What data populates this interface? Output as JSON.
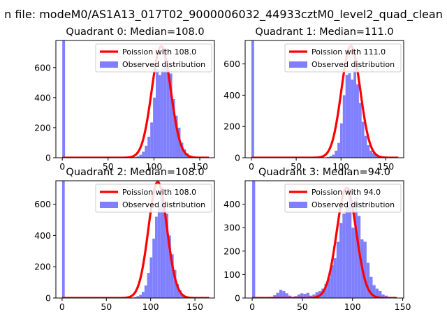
{
  "suptitle": "n file: modeM0/AS1A13_017T02_9000006032_44933cztM0_level2_quad_clean",
  "chart_data": [
    {
      "type": "bar",
      "title": "Quadrant 0: Median=108.0",
      "xlim": [
        -7,
        166
      ],
      "ylim": [
        0,
        780
      ],
      "xticks": [
        0,
        50,
        100,
        150
      ],
      "yticks": [
        0,
        200,
        400,
        600
      ],
      "legend": [
        "Poission with 108.0",
        "Observed distribution"
      ],
      "legend_position": "upper right",
      "poisson_mean": 108,
      "poisson_peak": 742,
      "poisson_x_max": 160,
      "hist": {
        "bin_edges": [
          0,
          3,
          6,
          9,
          12,
          15,
          18,
          21,
          24,
          27,
          30,
          33,
          36,
          39,
          42,
          45,
          48,
          51,
          54,
          57,
          60,
          63,
          66,
          69,
          72,
          75,
          78,
          81,
          84,
          87,
          90,
          93,
          96,
          99,
          102,
          105,
          108,
          111,
          114,
          117,
          120,
          123,
          126,
          129,
          132,
          135,
          138,
          141,
          144,
          147,
          150,
          153,
          156,
          159
        ],
        "counts": [
          780,
          0,
          0,
          0,
          0,
          0,
          0,
          0,
          0,
          0,
          0,
          0,
          0,
          0,
          0,
          0,
          0,
          0,
          0,
          0,
          0,
          0,
          0,
          0,
          0,
          2,
          4,
          10,
          20,
          40,
          80,
          140,
          235,
          400,
          590,
          550,
          600,
          730,
          580,
          560,
          390,
          280,
          200,
          100,
          55,
          30,
          15,
          8,
          5,
          2,
          1,
          0,
          0
        ]
      },
      "poisson_color": "#ff0000",
      "hist_color": "#8080ff"
    },
    {
      "type": "bar",
      "title": "Quadrant 1: Median=111.0",
      "xlim": [
        -7,
        170
      ],
      "ylim": [
        0,
        750
      ],
      "xticks": [
        0,
        50,
        100,
        150
      ],
      "yticks": [
        0,
        200,
        400,
        600
      ],
      "legend": [
        "Poission with 111.0",
        "Observed distribution"
      ],
      "legend_position": "upper right",
      "poisson_mean": 111,
      "poisson_peak": 715,
      "poisson_x_max": 164,
      "hist": {
        "bin_edges": [
          0,
          3,
          6,
          9,
          12,
          15,
          18,
          21,
          24,
          27,
          30,
          33,
          36,
          39,
          42,
          45,
          48,
          51,
          54,
          57,
          60,
          63,
          66,
          69,
          72,
          75,
          78,
          81,
          84,
          87,
          90,
          93,
          96,
          99,
          102,
          105,
          108,
          111,
          114,
          117,
          120,
          123,
          126,
          129,
          132,
          135,
          138,
          141,
          144,
          147,
          150,
          153,
          156
        ],
        "counts": [
          750,
          0,
          0,
          0,
          0,
          0,
          0,
          0,
          0,
          0,
          0,
          0,
          0,
          0,
          0,
          0,
          0,
          0,
          0,
          0,
          0,
          0,
          0,
          0,
          0,
          0,
          0,
          2,
          5,
          10,
          20,
          45,
          95,
          220,
          400,
          530,
          540,
          500,
          630,
          470,
          350,
          230,
          140,
          80,
          45,
          30,
          20,
          10,
          5,
          2,
          1,
          0
        ]
      },
      "poisson_color": "#ff0000",
      "hist_color": "#8080ff"
    },
    {
      "type": "bar",
      "title": "Quadrant 2: Median=108.0",
      "xlim": [
        -7,
        172
      ],
      "ylim": [
        0,
        750
      ],
      "xticks": [
        0,
        50,
        100,
        150
      ],
      "yticks": [
        0,
        200,
        400,
        600
      ],
      "legend": [
        "Poission with 108.0",
        "Observed distribution"
      ],
      "legend_position": "upper right",
      "poisson_mean": 108,
      "poisson_peak": 742,
      "poisson_x_max": 166,
      "hist": {
        "bin_edges": [
          0,
          3,
          6,
          9,
          12,
          15,
          18,
          21,
          24,
          27,
          30,
          33,
          36,
          39,
          42,
          45,
          48,
          51,
          54,
          57,
          60,
          63,
          66,
          69,
          72,
          75,
          78,
          81,
          84,
          87,
          90,
          93,
          96,
          99,
          102,
          105,
          108,
          111,
          114,
          117,
          120,
          123,
          126,
          129,
          132,
          135,
          138,
          141,
          144,
          147,
          150,
          153,
          156,
          159
        ],
        "counts": [
          750,
          0,
          0,
          0,
          0,
          0,
          0,
          0,
          0,
          0,
          0,
          0,
          0,
          0,
          0,
          0,
          0,
          0,
          0,
          0,
          0,
          0,
          0,
          0,
          0,
          1,
          3,
          6,
          12,
          20,
          40,
          80,
          160,
          260,
          380,
          520,
          590,
          710,
          600,
          540,
          400,
          280,
          180,
          90,
          50,
          25,
          12,
          6,
          3,
          1,
          0,
          0,
          0
        ]
      },
      "poisson_color": "#ff0000",
      "hist_color": "#8080ff"
    },
    {
      "type": "bar",
      "title": "Quadrant 3: Median=94.0",
      "xlim": [
        -7,
        151
      ],
      "ylim": [
        0,
        500
      ],
      "xticks": [
        0,
        50,
        100,
        150
      ],
      "yticks": [
        0,
        100,
        200,
        300,
        400
      ],
      "legend": [
        "Poission with 94.0",
        "Observed distribution"
      ],
      "legend_position": "upper right",
      "poisson_mean": 94,
      "poisson_peak": 470,
      "poisson_x_max": 144,
      "hist": {
        "bin_edges": [
          0,
          3,
          6,
          9,
          12,
          15,
          18,
          21,
          24,
          27,
          30,
          33,
          36,
          39,
          42,
          45,
          48,
          51,
          54,
          57,
          60,
          63,
          66,
          69,
          72,
          75,
          78,
          81,
          84,
          87,
          90,
          93,
          96,
          99,
          102,
          105,
          108,
          111,
          114,
          117,
          120,
          123,
          126,
          129,
          132,
          135,
          138
        ],
        "counts": [
          500,
          0,
          0,
          0,
          0,
          2,
          5,
          12,
          22,
          35,
          30,
          20,
          10,
          5,
          8,
          15,
          20,
          18,
          22,
          10,
          15,
          25,
          30,
          40,
          60,
          85,
          140,
          170,
          240,
          320,
          360,
          400,
          470,
          300,
          430,
          350,
          250,
          240,
          150,
          90,
          55,
          40,
          30,
          15,
          10,
          5
        ]
      },
      "poisson_color": "#ff0000",
      "hist_color": "#8080ff"
    }
  ]
}
